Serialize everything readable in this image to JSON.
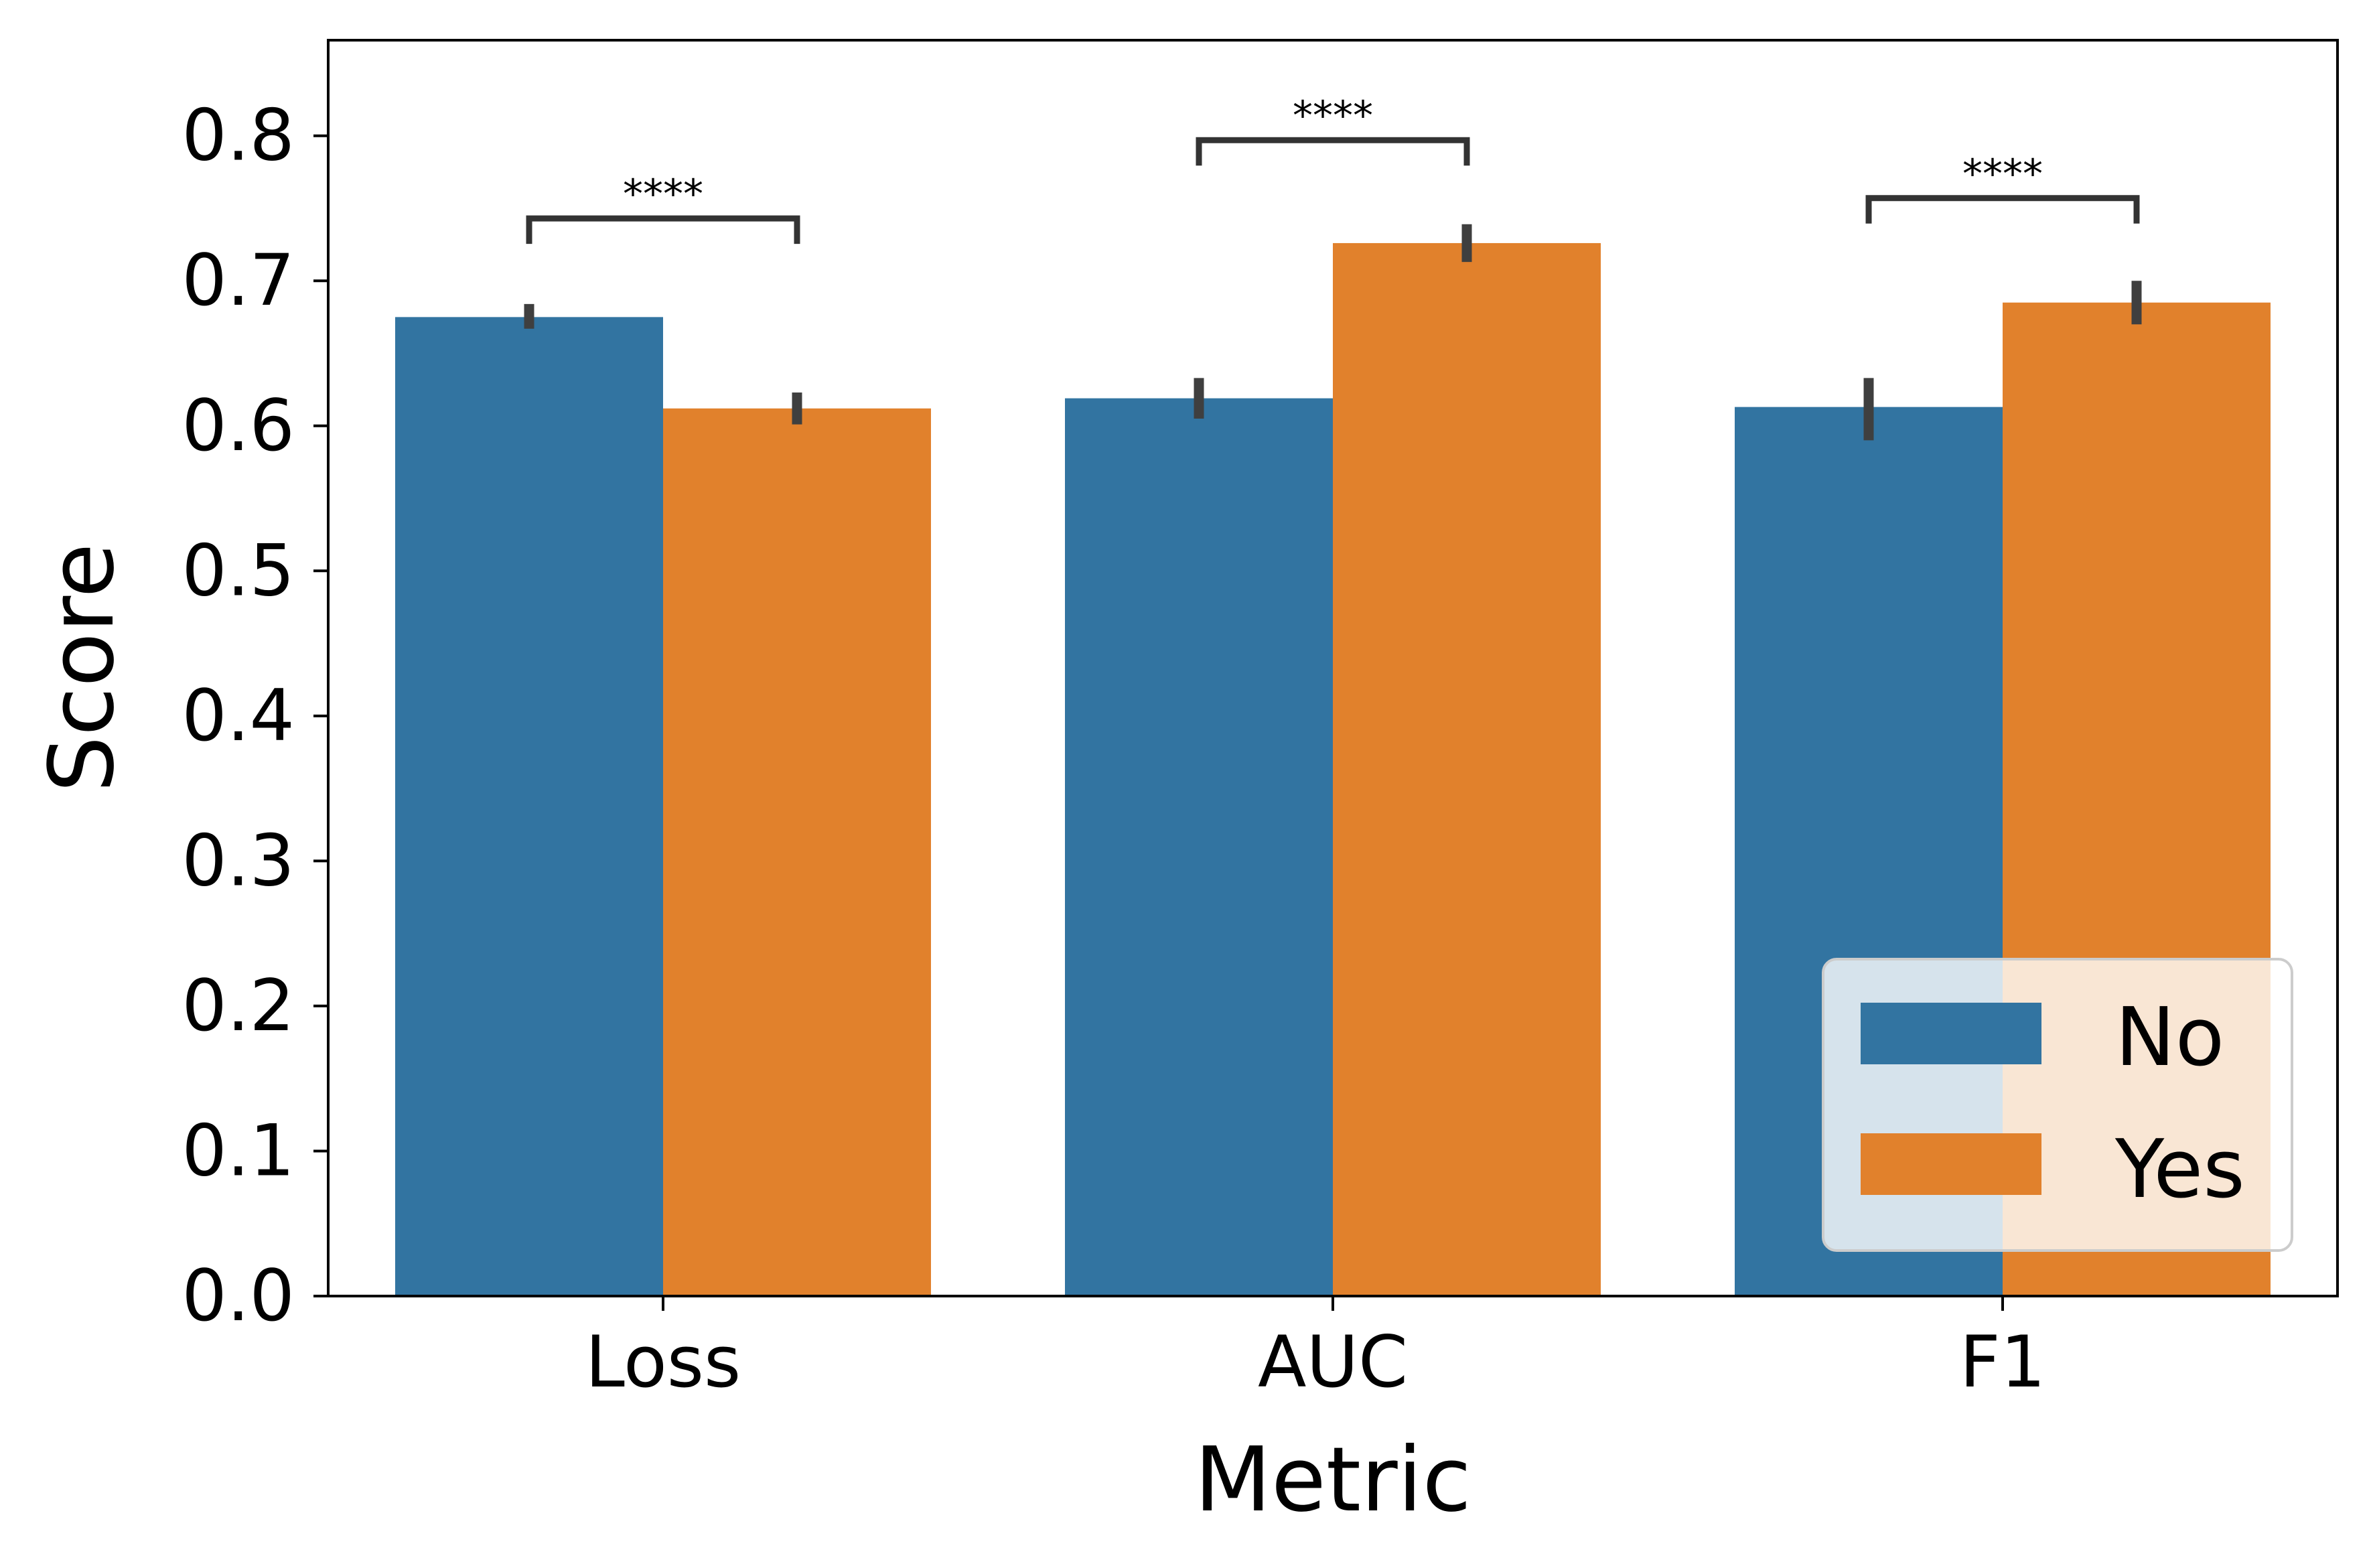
{
  "chart_data": {
    "type": "bar",
    "categories": [
      "Loss",
      "AUC",
      "F1"
    ],
    "series": [
      {
        "name": "No",
        "color": "#3274a1",
        "values": [
          0.675,
          0.619,
          0.613
        ],
        "error": [
          [
            0.667,
            0.684
          ],
          [
            0.605,
            0.633
          ],
          [
            0.59,
            0.633
          ]
        ]
      },
      {
        "name": "Yes",
        "color": "#e1812c",
        "values": [
          0.612,
          0.726,
          0.685
        ],
        "error": [
          [
            0.601,
            0.623
          ],
          [
            0.713,
            0.739
          ],
          [
            0.67,
            0.7
          ]
        ]
      }
    ],
    "annotations": [
      {
        "category": "Loss",
        "text": "****",
        "y": 0.743
      },
      {
        "category": "AUC",
        "text": "****",
        "y": 0.797
      },
      {
        "category": "F1",
        "text": "****",
        "y": 0.757
      }
    ],
    "xlabel": "Metric",
    "ylabel": "Score",
    "ylim": [
      0,
      0.8659
    ],
    "yticks": [
      0.0,
      0.1,
      0.2,
      0.3,
      0.4,
      0.5,
      0.6,
      0.7,
      0.8
    ],
    "ytick_labels": [
      "0.0",
      "0.1",
      "0.2",
      "0.3",
      "0.4",
      "0.5",
      "0.6",
      "0.7",
      "0.8"
    ],
    "legend": {
      "placement": "lower-right",
      "entries": [
        "No",
        "Yes"
      ]
    },
    "grid": false
  }
}
